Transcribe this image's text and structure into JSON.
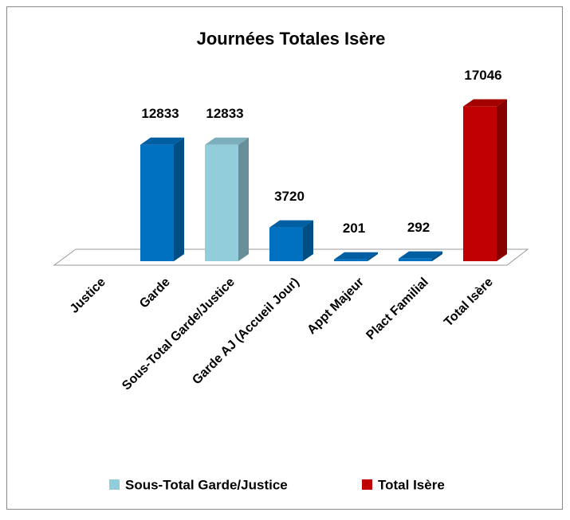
{
  "chart_data": {
    "type": "bar3d",
    "title": "Journées Totales Isère",
    "categories": [
      "Justice",
      "Garde",
      "Sous-Total Garde/Justice",
      "Garde AJ (Accueil Jour)",
      "Appt Majeur",
      "Plact Familial",
      "Total Isère"
    ],
    "values": [
      null,
      12833,
      12833,
      3720,
      201,
      292,
      17046
    ],
    "colors": [
      "#0070c0",
      "#0070c0",
      "#92cddc",
      "#0070c0",
      "#0070c0",
      "#0070c0",
      "#c00000"
    ],
    "ylim": [
      0,
      20000
    ],
    "legend": [
      {
        "name": "Sous-Total Garde/Justice",
        "color": "#92cddc"
      },
      {
        "name": "Total Isère",
        "color": "#c00000"
      }
    ]
  }
}
